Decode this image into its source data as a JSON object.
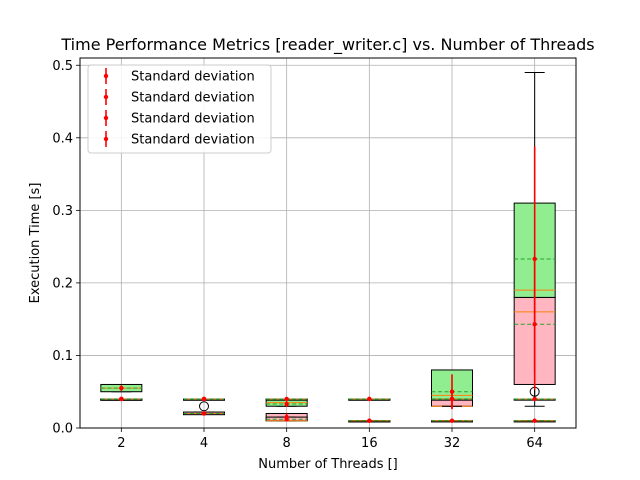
{
  "chart_data": {
    "type": "box",
    "title": "Time Performance Metrics [reader_writer.c] vs. Number of Threads",
    "xlabel": "Number of Threads []",
    "ylabel": "Execution Time [s]",
    "ylim": [
      0,
      0.51
    ],
    "yticks": [
      "0.0",
      "0.1",
      "0.2",
      "0.3",
      "0.4",
      "0.5"
    ],
    "categories": [
      "2",
      "4",
      "8",
      "16",
      "32",
      "64"
    ],
    "grid": true,
    "legend_position": "top-left",
    "legend": [
      "Standard deviation",
      "Standard deviation",
      "Standard deviation",
      "Standard deviation"
    ],
    "series": [
      {
        "color": "#ffb6c1",
        "boxes": [
          {
            "whislo": 0.04,
            "q1": 0.04,
            "med": 0.04,
            "mean": 0.04,
            "q3": 0.04,
            "whishi": 0.04,
            "fliers": []
          },
          {
            "whislo": 0.02,
            "q1": 0.02,
            "med": 0.02,
            "mean": 0.02,
            "q3": 0.022,
            "whishi": 0.022,
            "fliers": [
              0.03
            ]
          },
          {
            "whislo": 0.01,
            "q1": 0.01,
            "med": 0.015,
            "mean": 0.015,
            "q3": 0.02,
            "whishi": 0.02,
            "fliers": []
          },
          {
            "whislo": 0.01,
            "q1": 0.01,
            "med": 0.01,
            "mean": 0.01,
            "q3": 0.01,
            "whishi": 0.01,
            "fliers": []
          },
          {
            "whislo": 0.03,
            "q1": 0.03,
            "med": 0.03,
            "mean": 0.04,
            "q3": 0.05,
            "whishi": 0.05,
            "fliers": []
          },
          {
            "whislo": 0.03,
            "q1": 0.06,
            "med": 0.16,
            "mean": 0.143,
            "q3": 0.18,
            "whishi": 0.28,
            "fliers": [
              0.05
            ]
          }
        ],
        "std": [
          0.0,
          0.001,
          0.005,
          0.0,
          0.013,
          0.09
        ]
      },
      {
        "color": "#90ee90",
        "boxes": [
          {
            "whislo": 0.05,
            "q1": 0.05,
            "med": 0.055,
            "mean": 0.055,
            "q3": 0.06,
            "whishi": 0.06,
            "fliers": []
          },
          {
            "whislo": 0.04,
            "q1": 0.04,
            "med": 0.04,
            "mean": 0.04,
            "q3": 0.04,
            "whishi": 0.04,
            "fliers": []
          },
          {
            "whislo": 0.03,
            "q1": 0.03,
            "med": 0.035,
            "mean": 0.033,
            "q3": 0.04,
            "whishi": 0.04,
            "fliers": []
          },
          {
            "whislo": 0.04,
            "q1": 0.04,
            "med": 0.04,
            "mean": 0.04,
            "q3": 0.04,
            "whishi": 0.04,
            "fliers": []
          },
          {
            "whislo": 0.03,
            "q1": 0.04,
            "med": 0.045,
            "mean": 0.05,
            "q3": 0.08,
            "whishi": 0.08,
            "fliers": []
          },
          {
            "whislo": 0.04,
            "q1": 0.18,
            "med": 0.19,
            "mean": 0.233,
            "q3": 0.31,
            "whishi": 0.49,
            "fliers": []
          }
        ],
        "std": [
          0.004,
          0.0,
          0.004,
          0.0,
          0.024,
          0.155
        ]
      },
      {
        "color": "#ffb6c1",
        "boxes": [
          {
            "whislo": 0.04,
            "q1": 0.04,
            "med": 0.04,
            "mean": 0.04,
            "q3": 0.04,
            "whishi": 0.04,
            "fliers": []
          },
          {
            "whislo": 0.02,
            "q1": 0.02,
            "med": 0.02,
            "mean": 0.02,
            "q3": 0.02,
            "whishi": 0.02,
            "fliers": []
          },
          {
            "whislo": 0.01,
            "q1": 0.01,
            "med": 0.01,
            "mean": 0.012,
            "q3": 0.015,
            "whishi": 0.015,
            "fliers": []
          },
          {
            "whislo": 0.01,
            "q1": 0.01,
            "med": 0.01,
            "mean": 0.01,
            "q3": 0.01,
            "whishi": 0.01,
            "fliers": []
          },
          {
            "whislo": 0.01,
            "q1": 0.01,
            "med": 0.01,
            "mean": 0.01,
            "q3": 0.01,
            "whishi": 0.01,
            "fliers": []
          },
          {
            "whislo": 0.01,
            "q1": 0.01,
            "med": 0.01,
            "mean": 0.01,
            "q3": 0.01,
            "whishi": 0.01,
            "fliers": []
          }
        ],
        "std": [
          0.0,
          0.0,
          0.003,
          0.0,
          0.0,
          0.0
        ]
      },
      {
        "color": "#90ee90",
        "boxes": [
          {
            "whislo": 0.04,
            "q1": 0.04,
            "med": 0.04,
            "mean": 0.04,
            "q3": 0.04,
            "whishi": 0.04,
            "fliers": []
          },
          {
            "whislo": 0.04,
            "q1": 0.04,
            "med": 0.04,
            "mean": 0.04,
            "q3": 0.04,
            "whishi": 0.04,
            "fliers": []
          },
          {
            "whislo": 0.04,
            "q1": 0.04,
            "med": 0.04,
            "mean": 0.04,
            "q3": 0.04,
            "whishi": 0.04,
            "fliers": []
          },
          {
            "whislo": 0.04,
            "q1": 0.04,
            "med": 0.04,
            "mean": 0.04,
            "q3": 0.04,
            "whishi": 0.04,
            "fliers": []
          },
          {
            "whislo": 0.04,
            "q1": 0.04,
            "med": 0.04,
            "mean": 0.04,
            "q3": 0.04,
            "whishi": 0.04,
            "fliers": []
          },
          {
            "whislo": 0.04,
            "q1": 0.04,
            "med": 0.04,
            "mean": 0.04,
            "q3": 0.04,
            "whishi": 0.04,
            "fliers": []
          }
        ],
        "std": [
          0.0,
          0.0,
          0.0,
          0.0,
          0.0,
          0.0
        ]
      }
    ]
  }
}
